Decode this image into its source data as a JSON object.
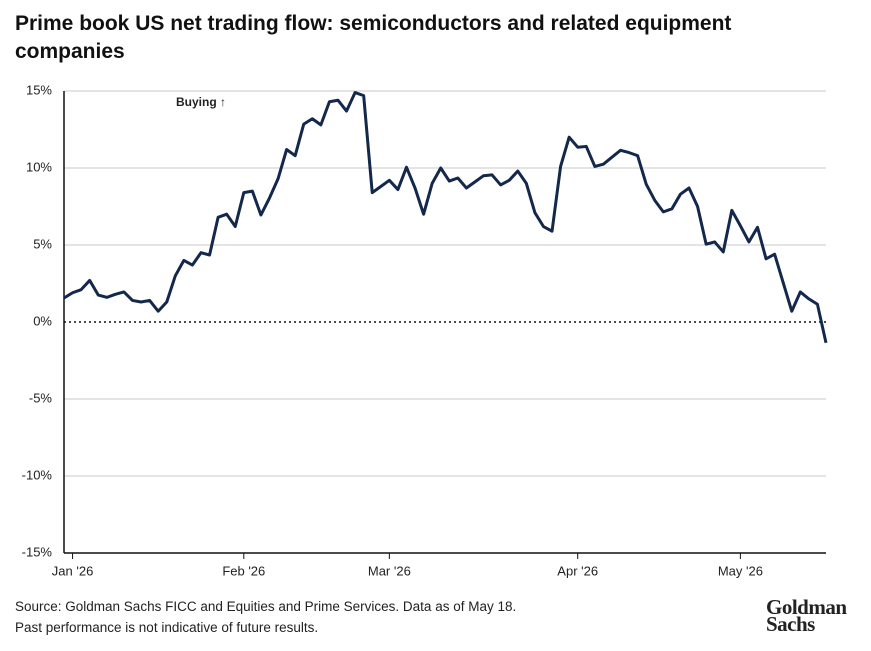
{
  "chart_data": {
    "type": "line",
    "title": "Prime book US net trading flow: semiconductors and related equipment companies",
    "annotation": "Buying ↑",
    "categories": [
      null,
      "Jan '26",
      null,
      null,
      null,
      null,
      null,
      null,
      null,
      null,
      null,
      null,
      null,
      null,
      null,
      null,
      null,
      null,
      null,
      null,
      null,
      "Feb '26",
      null,
      null,
      null,
      null,
      null,
      null,
      null,
      null,
      null,
      null,
      null,
      null,
      null,
      null,
      null,
      null,
      "Mar '26",
      null,
      null,
      null,
      null,
      null,
      null,
      null,
      null,
      null,
      null,
      null,
      null,
      null,
      null,
      null,
      null,
      null,
      null,
      null,
      null,
      null,
      "Apr '26",
      null,
      null,
      null,
      null,
      null,
      null,
      null,
      null,
      null,
      null,
      null,
      null,
      null,
      null,
      null,
      null,
      null,
      null,
      "May '26",
      null,
      null,
      null,
      null,
      null,
      null,
      null,
      null,
      null,
      null
    ],
    "series": [
      {
        "name": "Net trading flow",
        "color": "#14284b",
        "values": [
          1.56,
          1.9,
          2.1,
          2.7,
          1.75,
          1.6,
          1.8,
          1.95,
          1.4,
          1.3,
          1.4,
          0.7,
          1.3,
          3.0,
          4.0,
          3.7,
          4.5,
          4.35,
          6.8,
          7.0,
          6.2,
          8.4,
          8.5,
          6.95,
          8.05,
          9.3,
          11.2,
          10.8,
          12.85,
          13.2,
          12.8,
          14.3,
          14.4,
          13.7,
          14.9,
          14.7,
          8.4,
          8.8,
          9.2,
          8.6,
          10.05,
          8.7,
          7.0,
          9.0,
          10.0,
          9.15,
          9.35,
          8.7,
          9.1,
          9.5,
          9.55,
          8.9,
          9.2,
          9.8,
          9.0,
          7.1,
          6.2,
          5.9,
          10.1,
          12.0,
          11.35,
          11.4,
          10.1,
          10.25,
          10.7,
          11.15,
          11.0,
          10.8,
          8.95,
          7.9,
          7.15,
          7.35,
          8.3,
          8.7,
          7.5,
          5.05,
          5.2,
          4.55,
          7.25,
          6.25,
          5.2,
          6.15,
          4.1,
          4.4,
          2.55,
          0.7,
          1.95,
          1.5,
          1.15,
          -1.35
        ]
      }
    ],
    "ylim": [
      -15,
      15
    ],
    "yticks": [
      {
        "value": -15,
        "label": "-15%"
      },
      {
        "value": -10,
        "label": "-10%"
      },
      {
        "value": -5,
        "label": "-5%"
      },
      {
        "value": 0,
        "label": "0%"
      },
      {
        "value": 5,
        "label": "5%"
      },
      {
        "value": 10,
        "label": "10%"
      },
      {
        "value": 15,
        "label": "15%"
      }
    ],
    "grid": true
  },
  "footer": {
    "source": [
      "Source: Goldman Sachs FICC and Equities and Prime Services. Data as of May 18.",
      "Past performance is not indicative of future results."
    ],
    "logo": [
      "Goldman",
      "Sachs"
    ]
  }
}
